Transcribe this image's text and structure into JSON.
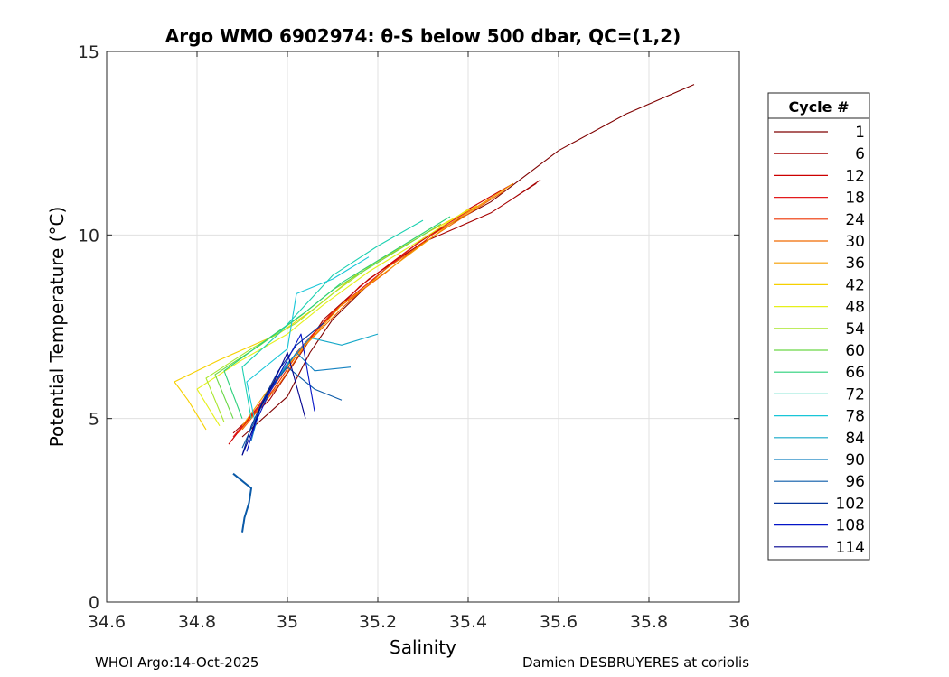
{
  "chart_data": {
    "type": "line",
    "title": "Argo WMO 6902974: θ-S below 500 dbar,  QC=(1,2)",
    "xlabel": "Salinity",
    "ylabel": "Potential Temperature (°C)",
    "xlim": [
      34.6,
      36
    ],
    "ylim": [
      0,
      15
    ],
    "xticks": [
      34.6,
      34.8,
      35,
      35.2,
      35.4,
      35.6,
      35.8,
      36
    ],
    "xtick_labels": [
      "34.6",
      "34.8",
      "35",
      "35.2",
      "35.4",
      "35.6",
      "35.8",
      "36"
    ],
    "yticks": [
      0,
      5,
      10,
      15
    ],
    "ytick_labels": [
      "0",
      "5",
      "10",
      "15"
    ],
    "grid": true,
    "legend": {
      "title": "Cycle #",
      "placement": "outside-right",
      "entries": [
        "1",
        "6",
        "12",
        "18",
        "24",
        "30",
        "36",
        "42",
        "48",
        "54",
        "60",
        "66",
        "72",
        "78",
        "84",
        "90",
        "96",
        "102",
        "108",
        "114"
      ],
      "colors": [
        "#7f0000",
        "#a50000",
        "#cc0000",
        "#e31a1c",
        "#ee3300",
        "#f06a00",
        "#f59e00",
        "#f6d000",
        "#e6f01a",
        "#a8e62a",
        "#6ad846",
        "#2ad07a",
        "#1ad0b0",
        "#18c6d8",
        "#14a8c8",
        "#1280c0",
        "#0a5aa8",
        "#06349a",
        "#0414c8",
        "#00008f"
      ]
    },
    "series": [
      {
        "name": "1",
        "x": [
          34.9,
          35.0,
          35.05,
          35.1,
          35.2,
          35.3,
          35.45,
          35.6,
          35.75,
          35.9
        ],
        "y": [
          4.5,
          5.6,
          6.8,
          7.7,
          8.9,
          9.9,
          10.9,
          12.3,
          13.3,
          14.1
        ]
      },
      {
        "name": "6",
        "x": [
          34.88,
          34.96,
          35.02,
          35.08,
          35.18,
          35.3,
          35.45,
          35.55,
          35.5,
          35.56
        ],
        "y": [
          4.6,
          5.5,
          6.6,
          7.7,
          8.8,
          9.8,
          10.6,
          11.4,
          11.0,
          11.5
        ]
      },
      {
        "name": "12",
        "x": [
          34.87,
          34.94,
          35.0,
          35.08,
          35.16,
          35.28,
          35.4,
          35.5
        ],
        "y": [
          4.3,
          5.4,
          6.5,
          7.6,
          8.6,
          9.7,
          10.7,
          11.4
        ]
      },
      {
        "name": "18",
        "x": [
          34.88,
          34.96,
          35.02,
          35.1,
          35.2,
          35.3,
          35.42
        ],
        "y": [
          4.5,
          5.7,
          6.8,
          7.9,
          8.9,
          9.9,
          10.8
        ]
      },
      {
        "name": "24",
        "x": [
          34.89,
          34.97,
          35.03,
          35.1,
          35.22,
          35.32,
          35.45
        ],
        "y": [
          4.6,
          5.8,
          6.9,
          7.9,
          9.0,
          10.0,
          11.0
        ]
      },
      {
        "name": "30",
        "x": [
          34.9,
          34.98,
          35.04,
          35.12,
          35.22,
          35.34,
          35.48
        ],
        "y": [
          4.7,
          5.9,
          7.0,
          8.0,
          9.1,
          10.1,
          11.2
        ]
      },
      {
        "name": "36",
        "x": [
          34.9,
          34.97,
          35.04,
          35.12,
          35.24,
          35.36,
          35.5
        ],
        "y": [
          4.8,
          6.0,
          7.0,
          8.1,
          9.2,
          10.3,
          11.4
        ]
      },
      {
        "name": "42",
        "x": [
          34.82,
          34.78,
          34.75,
          34.85,
          34.98,
          35.06,
          35.16,
          35.3,
          35.42
        ],
        "y": [
          4.7,
          5.5,
          6.0,
          6.6,
          7.3,
          8.0,
          9.0,
          10.0,
          10.8
        ]
      },
      {
        "name": "48",
        "x": [
          34.85,
          34.8,
          34.9,
          35.0,
          35.08,
          35.18,
          35.3,
          35.4
        ],
        "y": [
          4.8,
          5.8,
          6.6,
          7.3,
          8.1,
          9.0,
          9.9,
          10.7
        ]
      },
      {
        "name": "54",
        "x": [
          34.86,
          34.82,
          34.92,
          35.02,
          35.1,
          35.2,
          35.32
        ],
        "y": [
          4.9,
          6.1,
          6.9,
          7.6,
          8.4,
          9.3,
          10.2
        ]
      },
      {
        "name": "60",
        "x": [
          34.88,
          34.84,
          34.94,
          35.03,
          35.1,
          35.22,
          35.34
        ],
        "y": [
          5.0,
          6.2,
          7.0,
          7.8,
          8.5,
          9.4,
          10.3
        ]
      },
      {
        "name": "66",
        "x": [
          34.9,
          34.86,
          34.96,
          35.04,
          35.12,
          35.24,
          35.36
        ],
        "y": [
          5.0,
          6.3,
          7.2,
          7.9,
          8.7,
          9.6,
          10.5
        ]
      },
      {
        "name": "72",
        "x": [
          34.92,
          34.9,
          34.98,
          35.04,
          35.1,
          35.2,
          35.3
        ],
        "y": [
          5.0,
          6.4,
          7.3,
          8.1,
          8.9,
          9.7,
          10.4
        ]
      },
      {
        "name": "78",
        "x": [
          34.93,
          34.91,
          35.0,
          35.02,
          35.1,
          35.18
        ],
        "y": [
          4.8,
          6.0,
          6.9,
          8.4,
          8.8,
          9.4
        ]
      },
      {
        "name": "84",
        "x": [
          34.92,
          34.95,
          35.0,
          35.05,
          35.12,
          35.2
        ],
        "y": [
          4.6,
          5.6,
          6.5,
          7.2,
          7.0,
          7.3
        ]
      },
      {
        "name": "90",
        "x": [
          34.92,
          34.94,
          34.98,
          35.02,
          35.06,
          35.14
        ],
        "y": [
          4.4,
          5.3,
          6.1,
          6.8,
          6.3,
          6.4
        ]
      },
      {
        "name": "96",
        "x": [
          34.9,
          34.93,
          34.96,
          35.0,
          35.06,
          35.12
        ],
        "y": [
          4.2,
          5.0,
          5.8,
          6.4,
          5.8,
          5.5
        ]
      },
      {
        "name": "102",
        "x": [
          34.9,
          34.92,
          34.95,
          34.98,
          35.02,
          35.08
        ],
        "y": [
          4.0,
          4.8,
          5.6,
          6.3,
          7.0,
          7.6
        ]
      },
      {
        "name": "108",
        "x": [
          34.91,
          34.93,
          34.96,
          35.0,
          35.03,
          35.06
        ],
        "y": [
          4.1,
          4.9,
          5.7,
          6.6,
          7.3,
          5.2
        ]
      },
      {
        "name": "114",
        "x": [
          34.9,
          34.92,
          34.94,
          34.97,
          35.0,
          35.04
        ],
        "y": [
          4.0,
          4.6,
          5.3,
          6.0,
          6.8,
          5.0
        ]
      }
    ],
    "deep_tail": {
      "x": [
        34.88,
        34.9,
        34.92,
        34.915,
        34.905,
        34.9
      ],
      "y": [
        3.5,
        3.3,
        3.1,
        2.7,
        2.3,
        1.9
      ]
    }
  },
  "footer": {
    "left": "WHOI Argo:14-Oct-2025",
    "right": "Damien DESBRUYERES at coriolis"
  }
}
